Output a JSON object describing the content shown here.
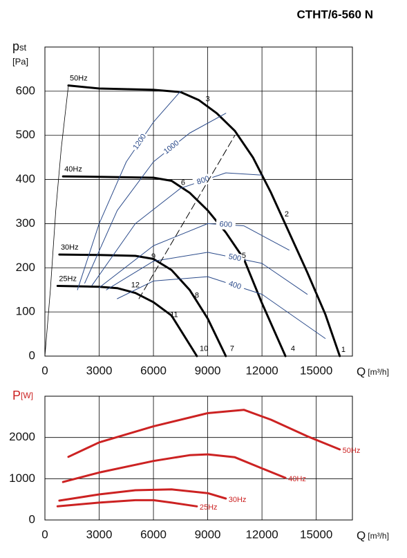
{
  "chart_data": [
    {
      "type": "line",
      "title": "CTHT/6-560 N",
      "y_label": "p",
      "y_label_sub": "st",
      "y_unit": "[Pa]",
      "x_label": "Q",
      "x_unit": "[m³/h]",
      "xlim": [
        0,
        17000
      ],
      "xticks": [
        0,
        3000,
        6000,
        9000,
        12000,
        15000
      ],
      "ylim": [
        0,
        700
      ],
      "yticks": [
        0,
        100,
        200,
        300,
        400,
        500,
        600
      ],
      "grid": true,
      "series": [
        {
          "name": "50Hz",
          "color": "#000000",
          "x": [
            1300,
            3000,
            6000,
            7500,
            8500,
            9500,
            10500,
            11500,
            12500,
            13500,
            14500,
            15500,
            16300
          ],
          "values": [
            613,
            606,
            603,
            598,
            580,
            550,
            510,
            450,
            370,
            280,
            190,
            95,
            0
          ]
        },
        {
          "name": "40Hz",
          "color": "#000000",
          "x": [
            1000,
            3000,
            6000,
            7000,
            8000,
            9000,
            10000,
            11000,
            12000,
            13300
          ],
          "values": [
            407,
            406,
            404,
            397,
            370,
            330,
            280,
            220,
            120,
            0
          ]
        },
        {
          "name": "30Hz",
          "color": "#000000",
          "x": [
            800,
            3000,
            5000,
            6000,
            7000,
            8000,
            9000,
            10000
          ],
          "values": [
            230,
            229,
            227,
            220,
            195,
            150,
            85,
            0
          ]
        },
        {
          "name": "25Hz",
          "color": "#000000",
          "x": [
            700,
            3000,
            4000,
            5000,
            6000,
            7000,
            8400
          ],
          "values": [
            159,
            157,
            154,
            143,
            122,
            92,
            0
          ]
        },
        {
          "name": "1200",
          "color": "#2a4a8a",
          "x": [
            1800,
            3000,
            4500,
            6000,
            7500
          ],
          "values": [
            150,
            300,
            440,
            530,
            600
          ]
        },
        {
          "name": "1000",
          "color": "#2a4a8a",
          "x": [
            2200,
            4000,
            6000,
            8000,
            10000
          ],
          "values": [
            165,
            330,
            440,
            505,
            550
          ]
        },
        {
          "name": "800",
          "color": "#2a4a8a",
          "x": [
            2600,
            5000,
            7500,
            10000,
            12000
          ],
          "values": [
            160,
            300,
            380,
            415,
            410
          ]
        },
        {
          "name": "600",
          "color": "#2a4a8a",
          "x": [
            3000,
            6000,
            9000,
            11000,
            13500
          ],
          "values": [
            155,
            250,
            300,
            295,
            240
          ]
        },
        {
          "name": "500",
          "color": "#2a4a8a",
          "x": [
            3400,
            6000,
            9000,
            12000,
            14500
          ],
          "values": [
            150,
            215,
            235,
            210,
            140
          ]
        },
        {
          "name": "400",
          "color": "#2a4a8a",
          "x": [
            4000,
            6000,
            9000,
            12000,
            15500
          ],
          "values": [
            130,
            170,
            180,
            140,
            40
          ]
        },
        {
          "color": "#000000",
          "x": [
            0,
            300,
            600,
            900,
            1300
          ],
          "values": [
            0,
            150,
            330,
            470,
            613
          ]
        },
        {
          "color": "#000000",
          "dashed": true,
          "x": [
            5200,
            10500
          ],
          "values": [
            130,
            500
          ]
        }
      ],
      "annotations": [
        {
          "text": "1",
          "x": 16500,
          "y": 14
        },
        {
          "text": "2",
          "x": 13370,
          "y": 321
        },
        {
          "text": "3",
          "x": 9000,
          "y": 582
        },
        {
          "text": "4",
          "x": 13710,
          "y": 16
        },
        {
          "text": "5",
          "x": 11000,
          "y": 227
        },
        {
          "text": "6",
          "x": 7640,
          "y": 392
        },
        {
          "text": "7",
          "x": 10350,
          "y": 16
        },
        {
          "text": "8",
          "x": 8400,
          "y": 137
        },
        {
          "text": "9",
          "x": 6000,
          "y": 225
        },
        {
          "text": "10",
          "x": 8790,
          "y": 16
        },
        {
          "text": "11",
          "x": 7140,
          "y": 93
        },
        {
          "text": "12",
          "x": 5000,
          "y": 160
        }
      ]
    },
    {
      "type": "line",
      "y_label": "P",
      "y_unit": "[W]",
      "x_label": "Q",
      "x_unit": "[m³/h]",
      "xlim": [
        0,
        17000
      ],
      "xticks": [
        0,
        3000,
        6000,
        9000,
        12000,
        15000
      ],
      "ylim": [
        0,
        3000
      ],
      "yticks": [
        0,
        1000,
        2000
      ],
      "grid": true,
      "series": [
        {
          "name": "50Hz",
          "color": "#cc2222",
          "x": [
            1300,
            3000,
            6000,
            9000,
            11000,
            12500,
            14500,
            16300
          ],
          "values": [
            1530,
            1880,
            2270,
            2590,
            2670,
            2430,
            2030,
            1710
          ]
        },
        {
          "name": "40Hz",
          "color": "#cc2222",
          "x": [
            1000,
            3000,
            6000,
            8000,
            9000,
            10500,
            12000,
            13300
          ],
          "values": [
            920,
            1150,
            1430,
            1570,
            1590,
            1520,
            1250,
            1020
          ]
        },
        {
          "name": "30Hz",
          "color": "#cc2222",
          "x": [
            800,
            3000,
            5000,
            7000,
            9000,
            10000
          ],
          "values": [
            470,
            620,
            720,
            740,
            650,
            520
          ]
        },
        {
          "name": "25Hz",
          "color": "#cc2222",
          "x": [
            700,
            3000,
            5000,
            6000,
            7000,
            8400
          ],
          "values": [
            330,
            420,
            480,
            480,
            420,
            330
          ]
        }
      ]
    }
  ]
}
